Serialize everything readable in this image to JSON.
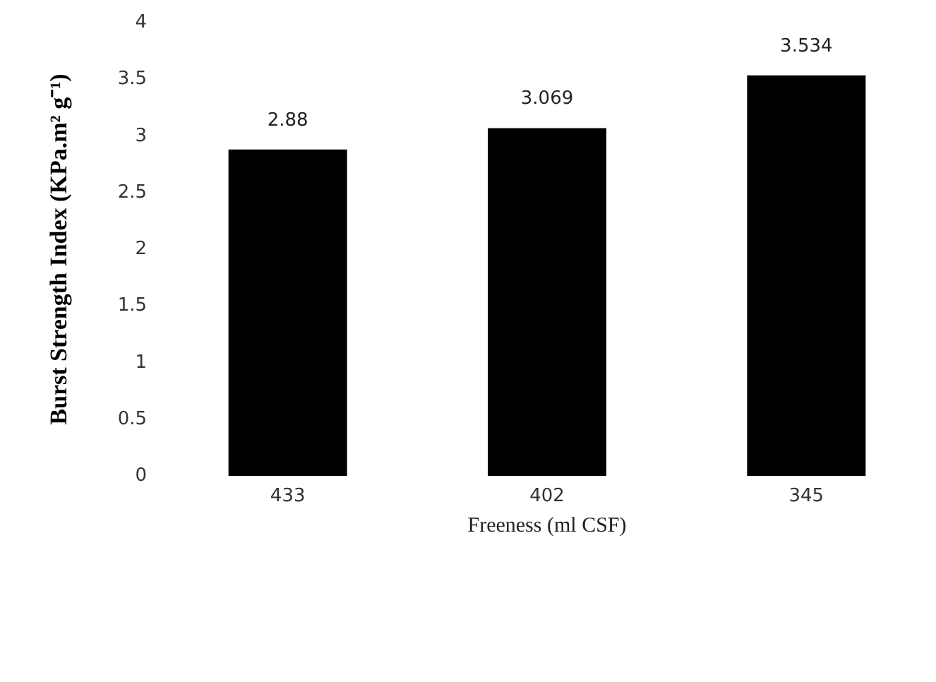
{
  "chart_data": {
    "type": "bar",
    "xlabel": "Freeness (ml CSF)",
    "ylabel": "Burst Strength Index (KPa.m² g⁻¹)",
    "categories": [
      "433",
      "402",
      "345"
    ],
    "values": [
      2.88,
      3.069,
      3.534
    ],
    "color": "#000000",
    "ylim": [
      0,
      4
    ],
    "yticks": [
      0,
      0.5,
      1,
      1.5,
      2,
      2.5,
      3,
      3.5,
      4
    ],
    "data_labels": true,
    "grid": false
  }
}
